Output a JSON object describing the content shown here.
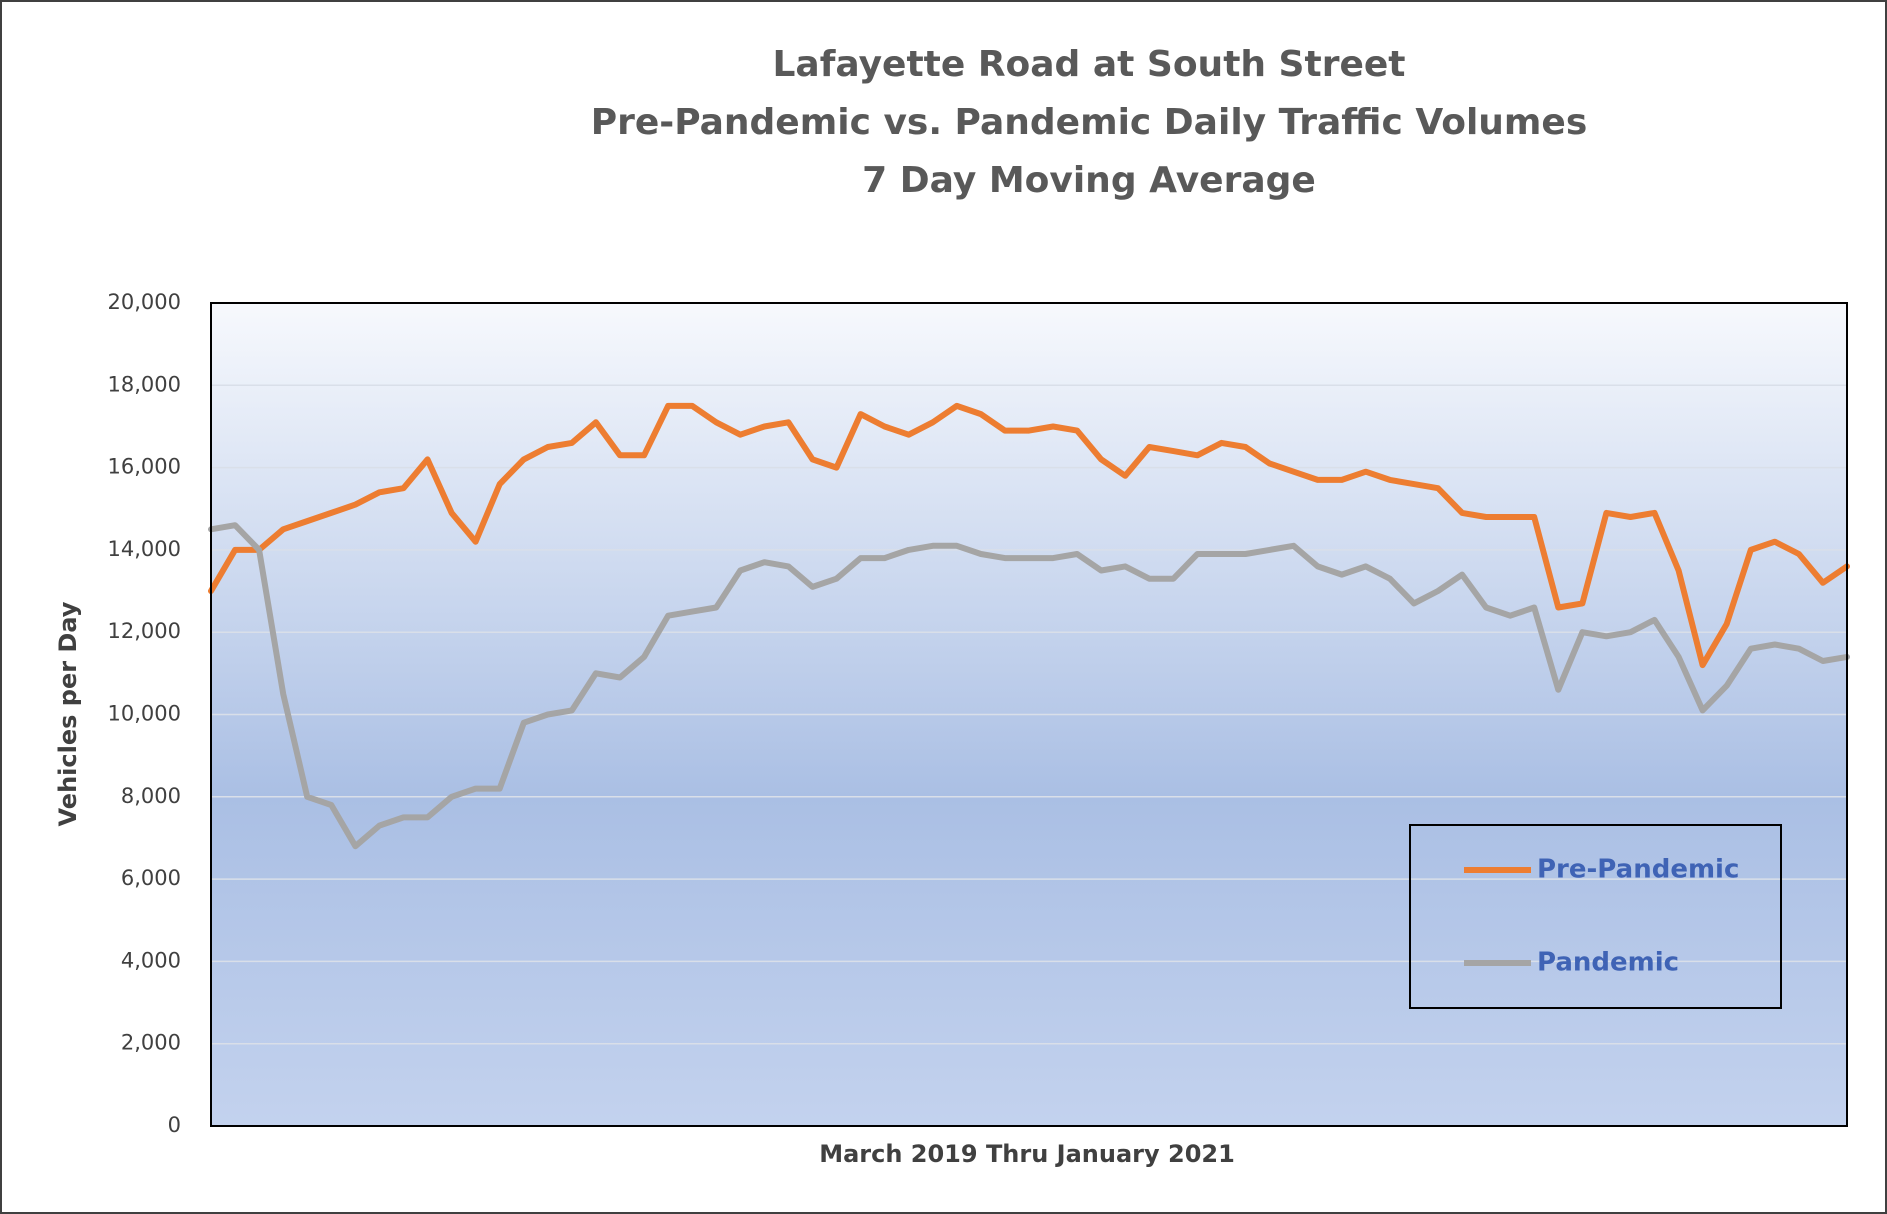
{
  "chart_data": {
    "type": "line",
    "title": [
      "Lafayette Road at South Street",
      "Pre-Pandemic vs. Pandemic Daily Traffic Volumes",
      "7 Day Moving Average"
    ],
    "x_label": "March  2019 Thru January  2021",
    "y_label": "Vehicles per Day",
    "ylim": [
      0,
      20000
    ],
    "yticks": [
      0,
      {
        "value": 2000,
        "label": "2,000"
      },
      {
        "value": 4000,
        "label": "4,000"
      },
      {
        "value": 6000,
        "label": "6,000"
      },
      {
        "value": 8000,
        "label": "8,000"
      },
      {
        "value": 10000,
        "label": "10,000"
      },
      {
        "value": 12000,
        "label": "12,000"
      },
      {
        "value": 14000,
        "label": "14,000"
      },
      {
        "value": 16000,
        "label": "16,000"
      },
      {
        "value": 18000,
        "label": "18,000"
      },
      {
        "value": 20000,
        "label": "20,000"
      }
    ],
    "grid": true,
    "legend": "lower right",
    "series": [
      {
        "name": "Pre-Pandemic",
        "color": "#ed7d31",
        "values": [
          13000,
          14000,
          14000,
          14500,
          14700,
          14900,
          15100,
          15400,
          15500,
          16200,
          14900,
          14200,
          15600,
          16200,
          16500,
          16600,
          17100,
          16300,
          16300,
          17500,
          17500,
          17100,
          16800,
          17000,
          17100,
          16200,
          16000,
          17300,
          17000,
          16800,
          17100,
          17500,
          17300,
          16900,
          16900,
          17000,
          16900,
          16200,
          15800,
          16500,
          16400,
          16300,
          16600,
          16500,
          16100,
          15900,
          15700,
          15700,
          15900,
          15700,
          15600,
          15500,
          14900,
          14800,
          14800,
          14800,
          12600,
          12700,
          14900,
          14800,
          14900,
          13500,
          11200,
          12200,
          14000,
          14200,
          13900,
          13200,
          13600
        ]
      },
      {
        "name": "Pandemic",
        "color": "#a5a5a5",
        "values": [
          14500,
          14600,
          14000,
          10500,
          8000,
          7800,
          6800,
          7300,
          7500,
          7500,
          8000,
          8200,
          8200,
          9800,
          10000,
          10100,
          11000,
          10900,
          11400,
          12400,
          12500,
          12600,
          13500,
          13700,
          13600,
          13100,
          13300,
          13800,
          13800,
          14000,
          14100,
          14100,
          13900,
          13800,
          13800,
          13800,
          13900,
          13500,
          13600,
          13300,
          13300,
          13900,
          13900,
          13900,
          14000,
          14100,
          13600,
          13400,
          13600,
          13300,
          12700,
          13000,
          13400,
          12600,
          12400,
          12600,
          10600,
          12000,
          11900,
          12000,
          12300,
          11400,
          10100,
          10700,
          11600,
          11700,
          11600,
          11300,
          11400
        ]
      }
    ]
  }
}
